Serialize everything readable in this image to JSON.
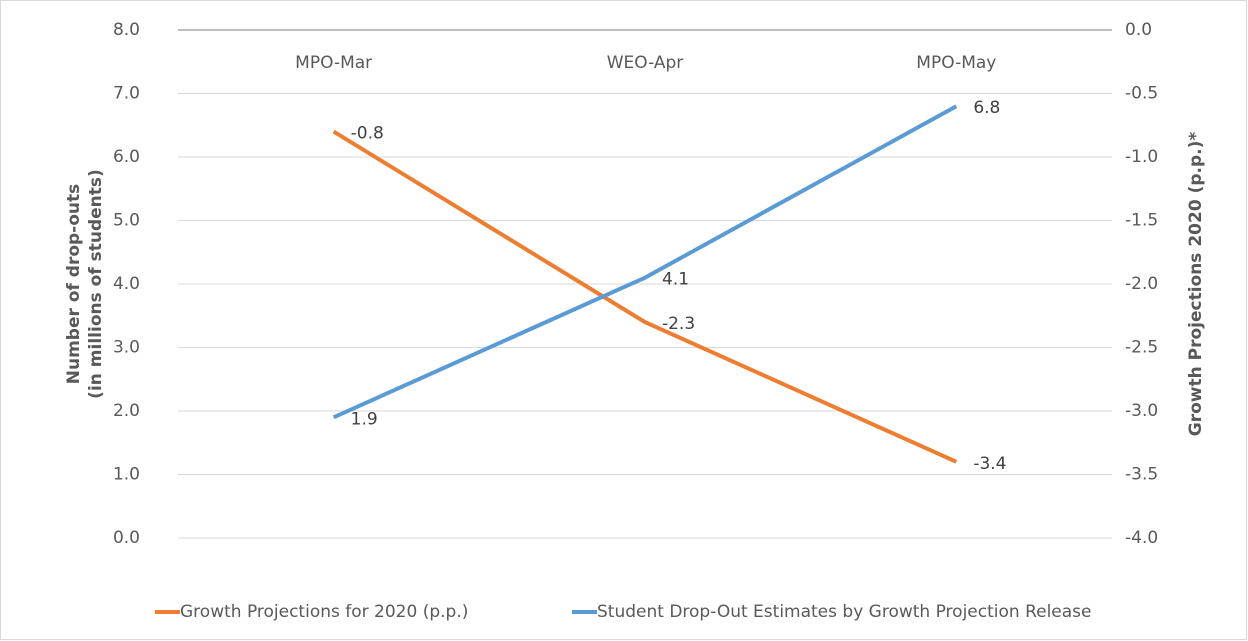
{
  "chart_data": {
    "type": "line",
    "categories": [
      "MPO-Mar",
      "WEO-Apr",
      "MPO-May"
    ],
    "ylabel": [
      "Number of drop-outs",
      "(in millions of students)"
    ],
    "y2label": "Growth Projections 2020 (p.p.)*",
    "series": [
      {
        "name": "Growth Projections for 2020 (p.p.)",
        "color": "#ed7d31",
        "axis": "y2",
        "values": [
          -0.8,
          -2.3,
          -3.4
        ]
      },
      {
        "name": "Student Drop-Out Estimates by Growth Projection Release",
        "color": "#5b9bd5",
        "values": [
          1.9,
          4.1,
          6.8
        ]
      }
    ],
    "ylim": [
      0,
      8
    ],
    "yticks": [
      {
        "value": 0,
        "label": "0.0"
      },
      {
        "value": 1,
        "label": "1.0"
      },
      {
        "value": 2,
        "label": "2.0"
      },
      {
        "value": 3,
        "label": "3.0"
      },
      {
        "value": 4,
        "label": "4.0"
      },
      {
        "value": 5,
        "label": "5.0"
      },
      {
        "value": 6,
        "label": "6.0"
      },
      {
        "value": 7,
        "label": "7.0"
      },
      {
        "value": 8,
        "label": "8.0"
      }
    ],
    "y2lim": [
      -4,
      0
    ],
    "y2ticks": [
      {
        "value": -4,
        "label": "-4.0"
      },
      {
        "value": -3.5,
        "label": "-3.5"
      },
      {
        "value": -3,
        "label": "-3.0"
      },
      {
        "value": -2.5,
        "label": "-2.5"
      },
      {
        "value": -2,
        "label": "-2.0"
      },
      {
        "value": -1.5,
        "label": "-1.5"
      },
      {
        "value": -1,
        "label": "-1.0"
      },
      {
        "value": -0.5,
        "label": "-0.5"
      },
      {
        "value": 0,
        "label": "0.0"
      }
    ],
    "grid": true,
    "legend": "bottom"
  }
}
